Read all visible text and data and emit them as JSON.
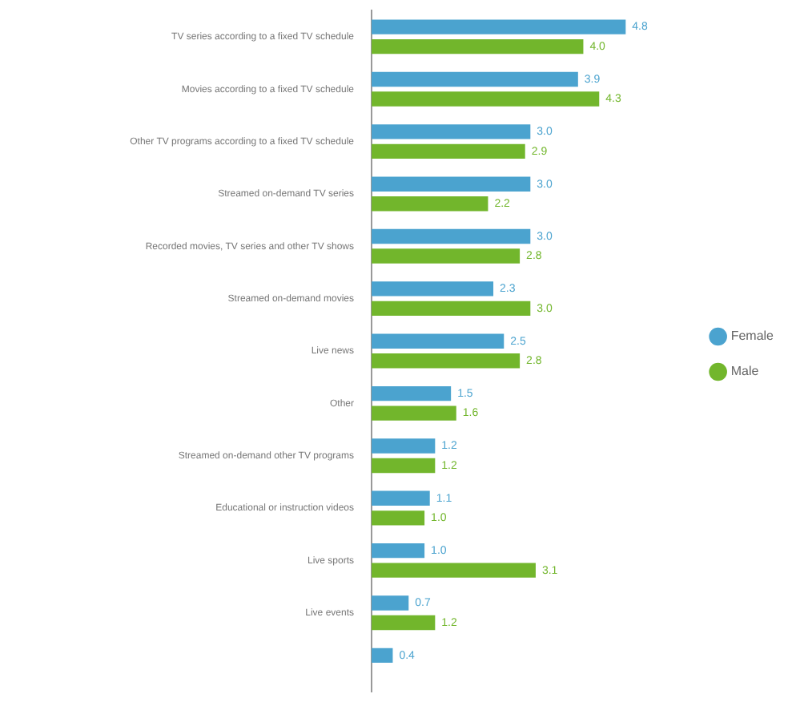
{
  "chart_data": {
    "type": "bar",
    "orientation": "horizontal",
    "categories": [
      "TV series according to a fixed TV schedule",
      "Movies according to a fixed TV schedule",
      "Other TV programs according to a fixed TV schedule",
      "Streamed on-demand TV series",
      "Recorded movies, TV series and other TV shows",
      "Streamed on-demand movies",
      "Live news",
      "Other",
      "Streamed on-demand other TV programs",
      "Educational or instruction videos",
      "Live sports",
      "Live events",
      null
    ],
    "series": [
      {
        "name": "Female",
        "color": "#4ba3cf",
        "values": [
          4.8,
          3.9,
          3.0,
          3.0,
          3.0,
          2.3,
          2.5,
          1.5,
          1.2,
          1.1,
          1.0,
          0.7,
          0.4
        ],
        "value_labels": [
          "4.8",
          "3.9",
          "3.0",
          "3.0",
          "3.0",
          "2.3",
          "2.5",
          "1.5",
          "1.2",
          "1.1",
          "1.0",
          "0.7",
          "0.4"
        ]
      },
      {
        "name": "Male",
        "color": "#72b62c",
        "values": [
          4.0,
          4.3,
          2.9,
          2.2,
          2.8,
          3.0,
          2.8,
          1.6,
          1.2,
          1.0,
          3.1,
          1.2,
          null
        ],
        "value_labels": [
          "4.0",
          "4.3",
          "2.9",
          "2.2",
          "2.8",
          "3.0",
          "2.8",
          "1.6",
          "1.2",
          "1.0",
          "3.1",
          "1.2",
          null
        ]
      }
    ],
    "legend": "right",
    "tick_labels": "y"
  }
}
